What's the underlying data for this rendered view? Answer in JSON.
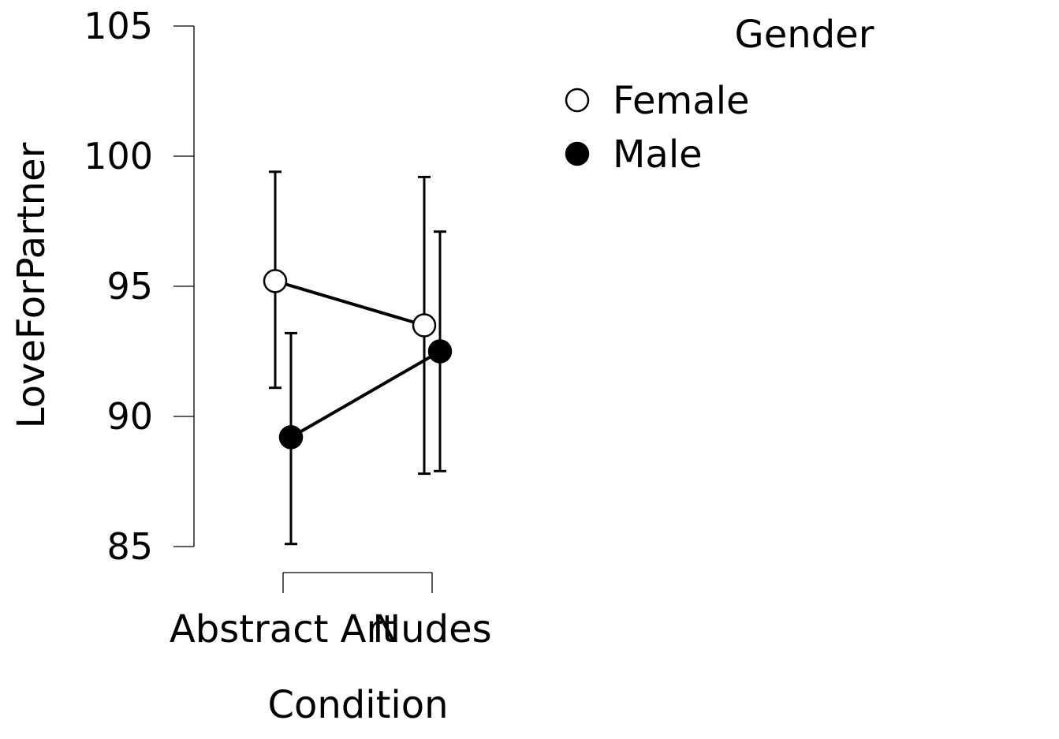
{
  "chart_data": {
    "type": "line",
    "xlabel": "Condition",
    "ylabel": "LoveForPartner",
    "categories": [
      "Abstract Art",
      "Nudes"
    ],
    "ylim": [
      85,
      105
    ],
    "yticks": [
      85,
      90,
      95,
      100,
      105
    ],
    "grid": false,
    "legend": {
      "title": "Gender",
      "placement": "top-right"
    },
    "series": [
      {
        "name": "Female",
        "marker": "open-circle",
        "color": "#ffffff",
        "values": [
          95.2,
          93.5
        ],
        "error_lower": [
          91.1,
          87.8
        ],
        "error_upper": [
          99.4,
          99.2
        ]
      },
      {
        "name": "Male",
        "marker": "filled-circle",
        "color": "#000000",
        "values": [
          89.2,
          92.5
        ],
        "error_lower": [
          85.1,
          87.9
        ],
        "error_upper": [
          93.2,
          97.1
        ]
      }
    ]
  }
}
